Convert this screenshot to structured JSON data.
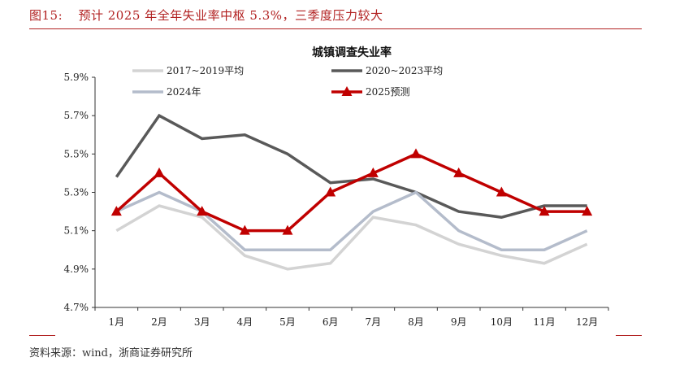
{
  "header": {
    "figure_label": "图15:",
    "figure_title": "预计 2025 年全年失业率中枢 5.3%，三季度压力较大"
  },
  "source": {
    "text": "资料来源：wind，浙商证券研究所"
  },
  "chart_data": {
    "type": "line",
    "title": "城镇调查失业率",
    "xlabel": "",
    "ylabel": "",
    "categories": [
      "1月",
      "2月",
      "3月",
      "4月",
      "5月",
      "6月",
      "7月",
      "8月",
      "9月",
      "10月",
      "11月",
      "12月"
    ],
    "yticks": [
      "4.7%",
      "4.9%",
      "5.1%",
      "5.3%",
      "5.5%",
      "5.7%",
      "5.9%"
    ],
    "ylim": [
      4.7,
      5.9
    ],
    "grid": false,
    "legend_position": "top",
    "series": [
      {
        "name": "2017~2019平均",
        "color": "#d3d3d3",
        "marker": "none",
        "values": [
          5.1,
          5.23,
          5.17,
          4.97,
          4.9,
          4.93,
          5.17,
          5.13,
          5.03,
          4.97,
          4.93,
          5.03
        ]
      },
      {
        "name": "2020~2023平均",
        "color": "#595959",
        "marker": "none",
        "values": [
          5.38,
          5.7,
          5.58,
          5.6,
          5.5,
          5.35,
          5.37,
          5.3,
          5.2,
          5.17,
          5.23,
          5.23
        ]
      },
      {
        "name": "2024年",
        "color": "#b4bccb",
        "marker": "none",
        "values": [
          5.2,
          5.3,
          5.2,
          5.0,
          5.0,
          5.0,
          5.2,
          5.3,
          5.1,
          5.0,
          5.0,
          5.1
        ]
      },
      {
        "name": "2025预测",
        "color": "#c00000",
        "marker": "triangle",
        "values": [
          5.2,
          5.4,
          5.2,
          5.1,
          5.1,
          5.3,
          5.4,
          5.5,
          5.4,
          5.3,
          5.2,
          5.2
        ]
      }
    ]
  }
}
